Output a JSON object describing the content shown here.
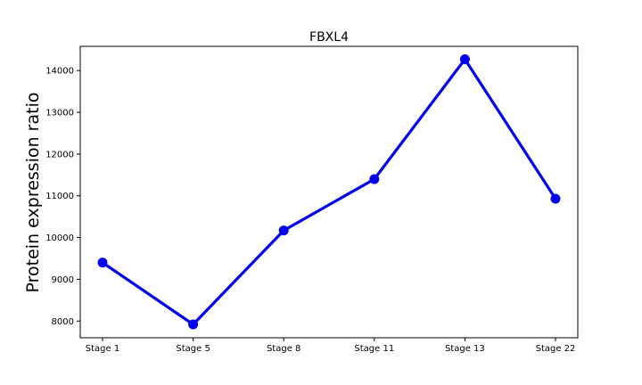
{
  "chart_data": {
    "type": "line",
    "title": "FBXL4",
    "xlabel": "",
    "ylabel": "Protein expression ratio",
    "categories": [
      "Stage 1",
      "Stage 5",
      "Stage 8",
      "Stage 11",
      "Stage 13",
      "Stage 22"
    ],
    "series": [
      {
        "values": [
          9400,
          7920,
          10170,
          11400,
          14270,
          10930
        ]
      }
    ],
    "yticks": [
      "8000",
      "9000",
      "10000",
      "11000",
      "12000",
      "13000",
      "14000"
    ],
    "ylim": [
      7600,
      14580
    ],
    "grid": false,
    "legend": "none",
    "colors": {
      "line": "#0000ee",
      "marker": "#0000ee",
      "axes": "#000000",
      "background": "#ffffff"
    }
  }
}
